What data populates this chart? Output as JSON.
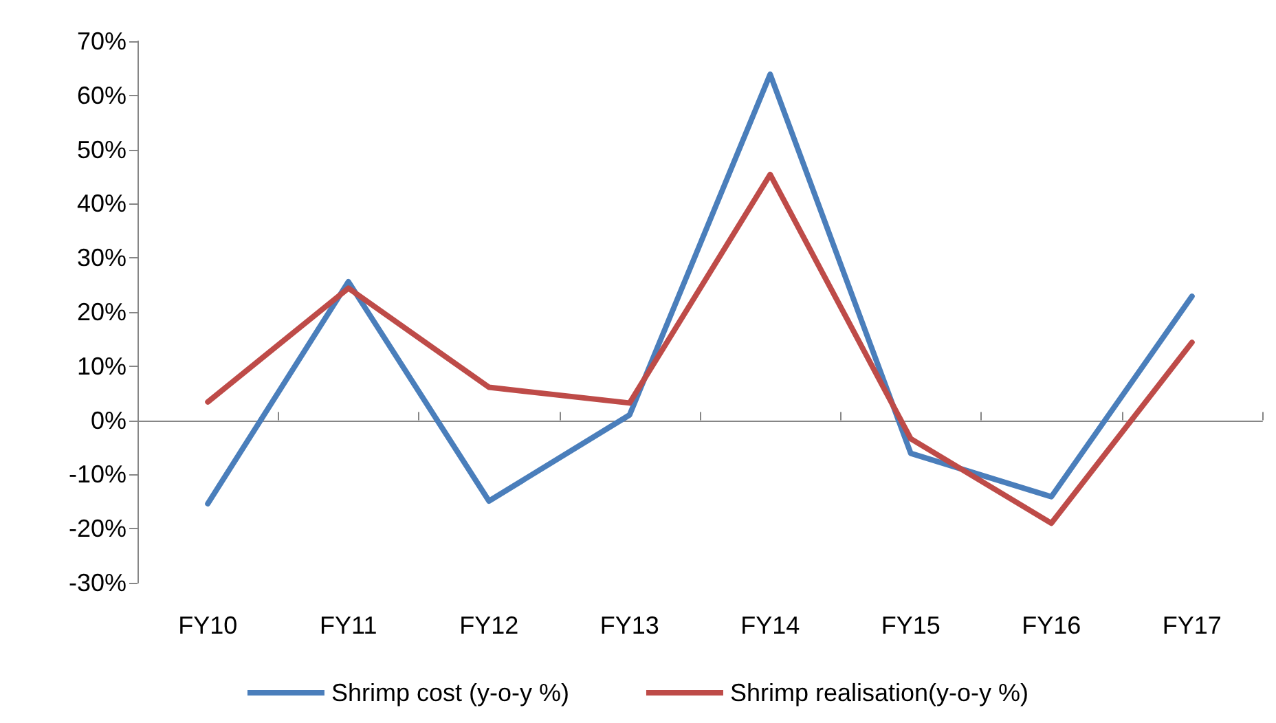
{
  "chart_data": {
    "type": "line",
    "categories": [
      "FY10",
      "FY11",
      "FY12",
      "FY13",
      "FY14",
      "FY15",
      "FY16",
      "FY17"
    ],
    "series": [
      {
        "name": "Shrimp cost (y-o-y %)",
        "color": "#4a7ebb",
        "values": [
          -15.4,
          25.6,
          -14.9,
          1,
          63.9,
          -6.1,
          -14.1,
          22.9
        ]
      },
      {
        "name": "Shrimp realisation(y-o-y %)",
        "color": "#be4b48",
        "values": [
          3.4,
          24.4,
          6.1,
          3.2,
          45.4,
          -3.4,
          -19,
          14.4
        ]
      }
    ],
    "ylim": [
      -30,
      70
    ],
    "yticks": [
      {
        "value": -30,
        "label": "-30%"
      },
      {
        "value": -20,
        "label": "-20%"
      },
      {
        "value": -10,
        "label": "-10%"
      },
      {
        "value": 0,
        "label": "0%"
      },
      {
        "value": 10,
        "label": "10%"
      },
      {
        "value": 20,
        "label": "20%"
      },
      {
        "value": 30,
        "label": "30%"
      },
      {
        "value": 40,
        "label": "40%"
      },
      {
        "value": 50,
        "label": "50%"
      },
      {
        "value": 60,
        "label": "60%"
      },
      {
        "value": 70,
        "label": "70%"
      }
    ],
    "legend": "bottom",
    "marker": "none",
    "line_style": "solid"
  }
}
